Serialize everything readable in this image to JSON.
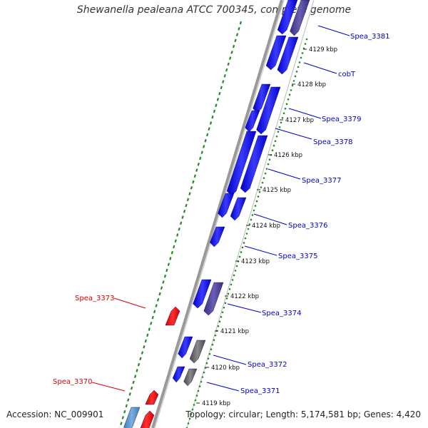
{
  "map": {
    "title": "Shewanella pealeana ATCC 700345, complete genome",
    "accession": "Accession: NC_009901",
    "topology": "Topology: circular; Length: 5,174,581 bp; Genes: 4,420"
  },
  "colors": {
    "forward_gene": "#0000ee",
    "reverse_gene": "#ee0000",
    "other_gene": "#4a3f8f",
    "rna_gene": "#555555",
    "backbone": "#888888",
    "gc_skew_dots": "#228b22",
    "forward_label": "#0000cc",
    "reverse_label": "#dd0000"
  },
  "ticks": [
    "4129 kbp",
    "4128 kbp",
    "4127 kbp",
    "4126 kbp",
    "4125 kbp",
    "4124 kbp",
    "4123 kbp",
    "4122 kbp",
    "4121 kbp",
    "4120 kbp",
    "4119 kbp"
  ],
  "gene_labels": {
    "forward": [
      "Spea_3381",
      "cobT",
      "Spea_3379",
      "Spea_3378",
      "Spea_3377",
      "Spea_3376",
      "Spea_3375",
      "Spea_3374",
      "Spea_3372",
      "Spea_3371"
    ],
    "reverse": [
      "Spea_3373",
      "Spea_3370"
    ]
  }
}
